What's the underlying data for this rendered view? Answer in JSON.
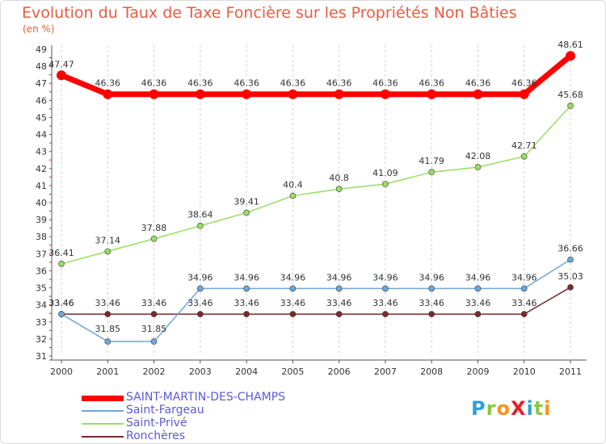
{
  "title": "Evolution du Taux de Taxe Foncière sur les Propriétés Non Bâties",
  "unit_label": "(en %)",
  "brand": {
    "text": "ProXiti",
    "letters": [
      {
        "ch": "P",
        "color": "#2f9fd8"
      },
      {
        "ch": "r",
        "color": "#8cc63f"
      },
      {
        "ch": "o",
        "color": "#f7941d"
      },
      {
        "ch": "X",
        "color": "#ed1c24"
      },
      {
        "ch": "i",
        "color": "#2f9fd8"
      },
      {
        "ch": "t",
        "color": "#8cc63f"
      },
      {
        "ch": "i",
        "color": "#f7941d"
      }
    ]
  },
  "chart_data": {
    "type": "line",
    "title": "Evolution du Taux de Taxe Foncière sur les Propriétés Non Bâties",
    "ylabel": "(en %)",
    "xlabel": "",
    "x": [
      "2000",
      "2001",
      "2002",
      "2003",
      "2004",
      "2005",
      "2006",
      "2007",
      "2008",
      "2009",
      "2010",
      "2011"
    ],
    "ylim": [
      31,
      49
    ],
    "yticks": [
      "31",
      "32",
      "33",
      "34",
      "35",
      "36",
      "37",
      "38",
      "39",
      "40",
      "41",
      "42",
      "43",
      "44",
      "45",
      "46",
      "47",
      "48",
      "49"
    ],
    "grid": "vertical dashed",
    "legend_position": "bottom-left",
    "series": [
      {
        "name": "SAINT-MARTIN-DES-CHAMPS",
        "color": "#ff0000",
        "values": [
          47.47,
          46.36,
          46.36,
          46.36,
          46.36,
          46.36,
          46.36,
          46.36,
          46.36,
          46.36,
          46.36,
          48.61
        ],
        "labels": [
          "47.47",
          "46.36",
          "46.36",
          "46.36",
          "46.36",
          "46.36",
          "46.36",
          "46.36",
          "46.36",
          "46.36",
          "46.36",
          "48.61"
        ]
      },
      {
        "name": "Saint-Fargeau",
        "color": "#6fa8d8",
        "values": [
          33.46,
          31.85,
          31.85,
          34.96,
          34.96,
          34.96,
          34.96,
          34.96,
          34.96,
          34.96,
          34.96,
          36.66
        ],
        "labels": [
          "33.46",
          "31.85",
          "31.85",
          "34.96",
          "34.96",
          "34.96",
          "34.96",
          "34.96",
          "34.96",
          "34.96",
          "34.96",
          "36.66"
        ]
      },
      {
        "name": "Saint-Privé",
        "color": "#99dd66",
        "values": [
          36.41,
          37.14,
          37.88,
          38.64,
          39.41,
          40.4,
          40.8,
          41.09,
          41.79,
          42.08,
          42.71,
          45.68
        ],
        "labels": [
          "36.41",
          "37.14",
          "37.88",
          "38.64",
          "39.41",
          "40.4",
          "40.8",
          "41.09",
          "41.79",
          "42.08",
          "42.71",
          "45.68"
        ]
      },
      {
        "name": "Ronchères",
        "color": "#7a2a2a",
        "values": [
          33.46,
          33.46,
          33.46,
          33.46,
          33.46,
          33.46,
          33.46,
          33.46,
          33.46,
          33.46,
          33.46,
          35.03
        ],
        "labels": [
          "33.46",
          "33.46",
          "33.46",
          "33.46",
          "33.46",
          "33.46",
          "33.46",
          "33.46",
          "33.46",
          "33.46",
          "33.46",
          "35.03"
        ]
      }
    ]
  }
}
